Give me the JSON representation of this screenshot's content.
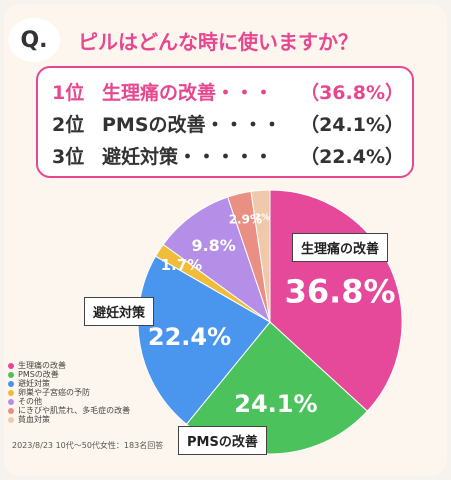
{
  "header": {
    "q_label": "Q.",
    "question": "ピルはどんな時に使いますか？"
  },
  "ranking": [
    {
      "pos": "1位",
      "label": "生理痛の改善・・・",
      "pct": "（36.8%）"
    },
    {
      "pos": "2位",
      "label": "PMSの改善・・・・",
      "pct": "（24.1%）"
    },
    {
      "pos": "3位",
      "label": "避妊対策・・・・・",
      "pct": "（22.4%）"
    }
  ],
  "chart_data": {
    "type": "pie",
    "title": "",
    "slices": [
      {
        "name": "生理痛の改善",
        "value": 36.8,
        "label": "36.8%",
        "color": "#e6489a"
      },
      {
        "name": "PMSの改善",
        "value": 24.1,
        "label": "24.1%",
        "color": "#4cc25c"
      },
      {
        "name": "避妊対策",
        "value": 22.4,
        "label": "22.4%",
        "color": "#4a96ef"
      },
      {
        "name": "卵巣や子宮癌の予防",
        "value": 1.7,
        "label": "1.7%",
        "color": "#f1bc3a"
      },
      {
        "name": "その他",
        "value": 9.8,
        "label": "9.8%",
        "color": "#b58ee8"
      },
      {
        "name": "にきびや肌荒れ、多毛症の改善",
        "value": 2.9,
        "label": "2.9%",
        "color": "#ea8f84"
      },
      {
        "name": "貧血対策",
        "value": 2.3,
        "label": "2%",
        "color": "#f0c9aa"
      }
    ],
    "callouts": {
      "menstrual": "生理痛の改善",
      "pms": "PMSの改善",
      "contraception": "避妊対策"
    },
    "legend_position": "bottom-left"
  },
  "footnote": "2023/8/23 10代〜50代女性：183名回答"
}
